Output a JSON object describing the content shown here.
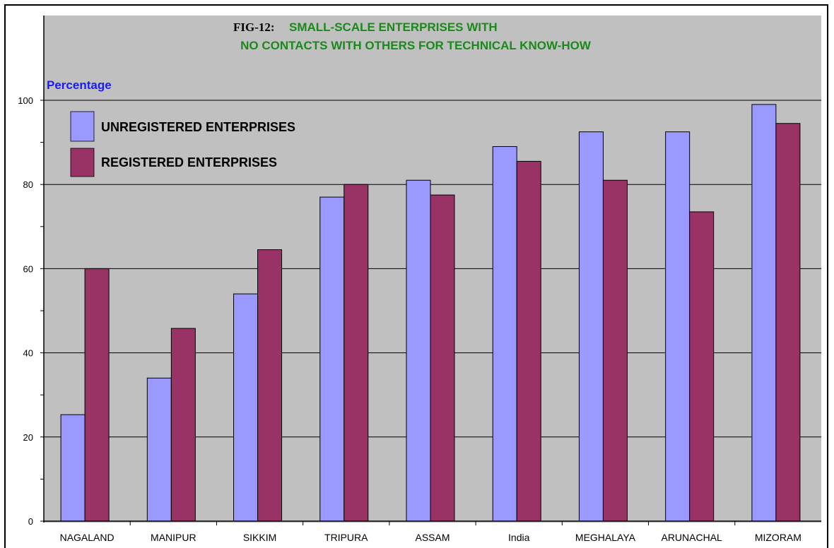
{
  "chart_data": {
    "type": "bar",
    "title_prefix": "FIG-12:",
    "title_line1": "SMALL-SCALE ENTERPRISES WITH",
    "title_line2": "NO CONTACTS WITH OTHERS FOR TECHNICAL KNOW-HOW",
    "ylabel": "Percentage",
    "ylim": [
      0,
      100
    ],
    "yticks": [
      0,
      20,
      40,
      60,
      80,
      100
    ],
    "grid": true,
    "legend_position": "top-left",
    "categories": [
      "NAGALAND",
      "MANIPUR",
      "SIKKIM",
      "TRIPURA",
      "ASSAM",
      "India",
      "MEGHALAYA",
      "ARUNACHAL",
      "MIZORAM"
    ],
    "series": [
      {
        "name": "UNREGISTERED ENTERPRISES",
        "color": "#9999ff",
        "values": [
          25.3,
          34,
          54,
          77,
          81,
          89,
          92.5,
          92.5,
          99
        ]
      },
      {
        "name": "REGISTERED ENTERPRISES",
        "color": "#993366",
        "values": [
          60,
          45.8,
          64.5,
          80,
          77.5,
          85.5,
          81,
          73.5,
          94.5
        ]
      }
    ],
    "colors": {
      "plot_background": "#c0c0c0",
      "title_green": "#1a8a1a",
      "ylabel_blue": "#1a1aff"
    }
  }
}
